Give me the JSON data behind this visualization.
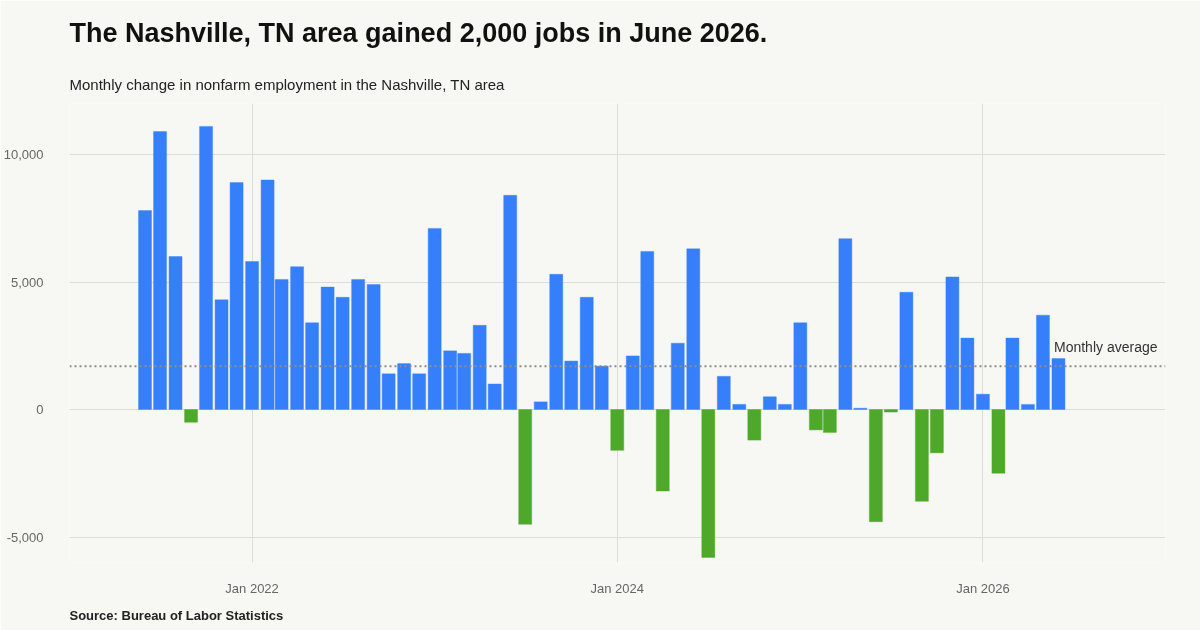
{
  "chart_data": {
    "type": "bar",
    "title": "The Nashville, TN area gained 2,000 jobs in June 2026.",
    "subtitle": "Monthly change in nonfarm employment in the Nashville, TN area",
    "annotations": [
      "Source: Bureau of Labor Statistics"
    ],
    "x": [
      "2021-06",
      "2021-07",
      "2021-08",
      "2021-09",
      "2021-10",
      "2021-11",
      "2021-12",
      "2022-01",
      "2022-02",
      "2022-03",
      "2022-04",
      "2022-05",
      "2022-06",
      "2022-07",
      "2022-08",
      "2022-09",
      "2022-10",
      "2022-11",
      "2022-12",
      "2023-01",
      "2023-02",
      "2023-03",
      "2023-04",
      "2023-05",
      "2023-06",
      "2023-07",
      "2023-08",
      "2023-09",
      "2023-10",
      "2023-11",
      "2023-12",
      "2024-01",
      "2024-02",
      "2024-03",
      "2024-04",
      "2024-05",
      "2024-06",
      "2024-07",
      "2024-08",
      "2024-09",
      "2024-10",
      "2024-11",
      "2024-12",
      "2025-01",
      "2025-02",
      "2025-03",
      "2025-04",
      "2025-05",
      "2025-06",
      "2025-07",
      "2025-08",
      "2025-09",
      "2025-10",
      "2025-11",
      "2025-12",
      "2026-01",
      "2026-02",
      "2026-03",
      "2026-04",
      "2026-05",
      "2026-06"
    ],
    "values": [
      7800,
      10900,
      6000,
      -500,
      11100,
      4300,
      8900,
      5800,
      9000,
      5100,
      5600,
      3400,
      4800,
      4400,
      5100,
      4900,
      1400,
      1800,
      1400,
      7100,
      2300,
      2200,
      3300,
      1000,
      8400,
      -4500,
      300,
      5300,
      1900,
      4400,
      1700,
      -1600,
      2100,
      6200,
      -3200,
      2600,
      6300,
      -5800,
      1300,
      200,
      -1200,
      500,
      200,
      3400,
      -800,
      -900,
      6700,
      50,
      -4400,
      -100,
      4600,
      -3600,
      -1700,
      5200,
      2800,
      600,
      -2500,
      2800,
      200,
      3700,
      2000
    ],
    "colors": [
      "#3580fa",
      "#3580fa",
      "#3580fa",
      "#4ea829",
      "#3580fa",
      "#3580fa",
      "#3580fa",
      "#3580fa",
      "#3580fa",
      "#3580fa",
      "#3580fa",
      "#3580fa",
      "#3580fa",
      "#3580fa",
      "#3580fa",
      "#3580fa",
      "#3580fa",
      "#3580fa",
      "#3580fa",
      "#3580fa",
      "#3580fa",
      "#3580fa",
      "#3580fa",
      "#3580fa",
      "#3580fa",
      "#4ea829",
      "#3580fa",
      "#3580fa",
      "#3580fa",
      "#3580fa",
      "#3580fa",
      "#4ea829",
      "#3580fa",
      "#3580fa",
      "#4ea829",
      "#3580fa",
      "#3580fa",
      "#4ea829",
      "#3580fa",
      "#3580fa",
      "#4ea829",
      "#3580fa",
      "#3580fa",
      "#3580fa",
      "#4ea829",
      "#4ea829",
      "#3580fa",
      "#3580fa",
      "#4ea829",
      "#4ea829",
      "#3580fa",
      "#4ea829",
      "#4ea829",
      "#3580fa",
      "#3580fa",
      "#3580fa",
      "#4ea829",
      "#3580fa",
      "#3580fa",
      "#3580fa",
      "#3580fa"
    ],
    "xlim": [
      "2021-01",
      "2027-01"
    ],
    "xticks": [
      {
        "value": "2022-01",
        "label": "Jan 2022"
      },
      {
        "value": "2024-01",
        "label": "Jan 2024"
      },
      {
        "value": "2026-01",
        "label": "Jan 2026"
      }
    ],
    "ylim": [
      -6000,
      12000
    ],
    "yticks": [
      {
        "value": -5000,
        "label": "-5,000"
      },
      0,
      {
        "value": 5000,
        "label": "5,000"
      },
      {
        "value": 10000,
        "label": "10,000"
      }
    ],
    "grid": true,
    "ref_lines": [
      {
        "axis": "y",
        "value": 1700,
        "label": "Monthly average",
        "color": "#8c8c8c",
        "line_style": "dotted"
      }
    ]
  }
}
